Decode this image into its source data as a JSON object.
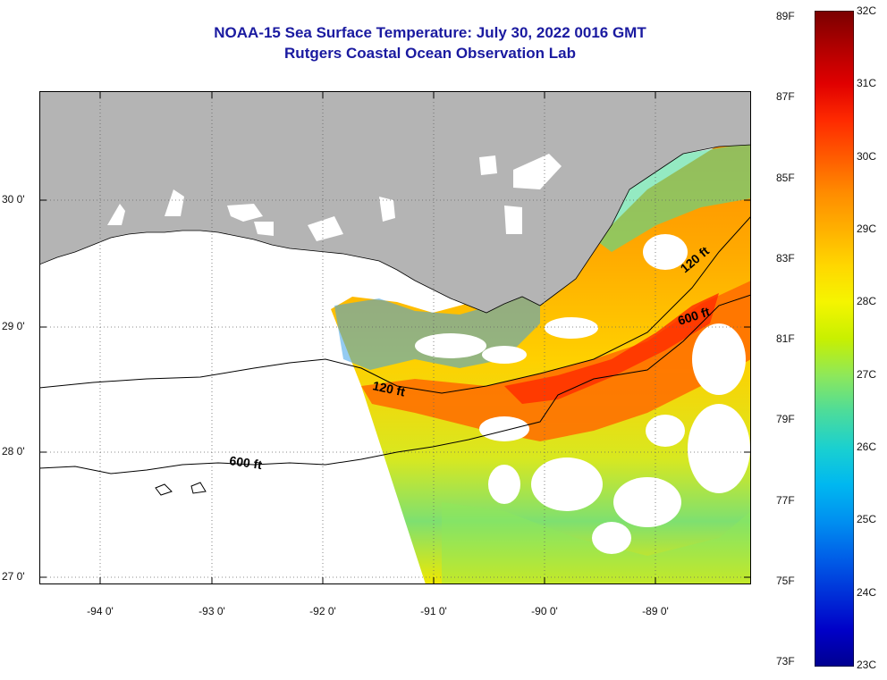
{
  "title_line1": "NOAA-15 Sea Surface Temperature:  July 30, 2022 0016 GMT",
  "title_line2": "Rutgers Coastal Ocean Observation Lab",
  "lat_labels": [
    "30 0'",
    "29 0'",
    "28 0'",
    "27 0'"
  ],
  "lon_labels": [
    "-94 0'",
    "-93 0'",
    "-92 0'",
    "-91 0'",
    "-90 0'",
    "-89 0'"
  ],
  "contour_labels": [
    "120 ft",
    "600 ft",
    "120 ft",
    "600 ft"
  ],
  "colorbar": {
    "f_labels": [
      "89F",
      "87F",
      "85F",
      "83F",
      "81F",
      "79F",
      "77F",
      "75F",
      "73F"
    ],
    "c_labels": [
      "32C",
      "31C",
      "30C",
      "29C",
      "28C",
      "27C",
      "26C",
      "25C",
      "24C",
      "23C"
    ],
    "colors": [
      "#7a0000",
      "#b00000",
      "#e00000",
      "#ff2a00",
      "#ff5a00",
      "#ff8c00",
      "#ffb000",
      "#ffd700",
      "#f5f500",
      "#c8f000",
      "#8ee85a",
      "#4ddc9a",
      "#1ad0d0",
      "#00b8f0",
      "#0090f0",
      "#0060e8",
      "#0030d8",
      "#0000c8",
      "#000090"
    ]
  },
  "colors": {
    "land": "#b4b4b4",
    "title": "#1a1aa0",
    "cloud": "#ffffff"
  }
}
